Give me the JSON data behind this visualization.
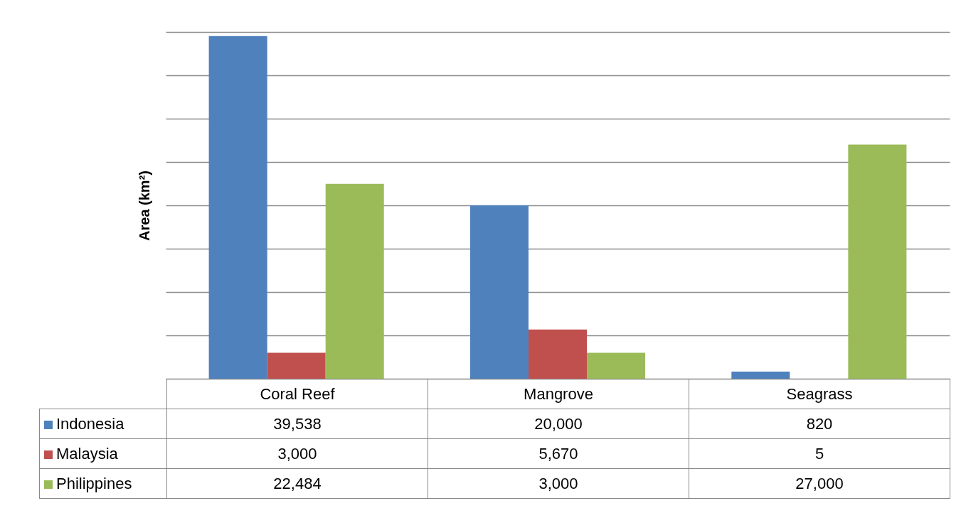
{
  "chart_data": {
    "type": "bar",
    "ylabel": "Area (km²)",
    "categories": [
      "Coral Reef",
      "Mangrove",
      "Seagrass"
    ],
    "series": [
      {
        "name": "Indonesia",
        "color": "#4f81bd",
        "values": [
          39538,
          20000,
          820
        ],
        "value_labels": [
          "39,538",
          "20,000",
          "820"
        ]
      },
      {
        "name": "Malaysia",
        "color": "#c0504d",
        "values": [
          3000,
          5670,
          5
        ],
        "value_labels": [
          "3,000",
          "5,670",
          "5"
        ]
      },
      {
        "name": "Philippines",
        "color": "#9bbb59",
        "values": [
          22484,
          3000,
          27000
        ],
        "value_labels": [
          "22,484",
          "3,000",
          "27,000"
        ]
      }
    ],
    "grid": "y",
    "tick_labels": "x",
    "legend": "bottom"
  }
}
